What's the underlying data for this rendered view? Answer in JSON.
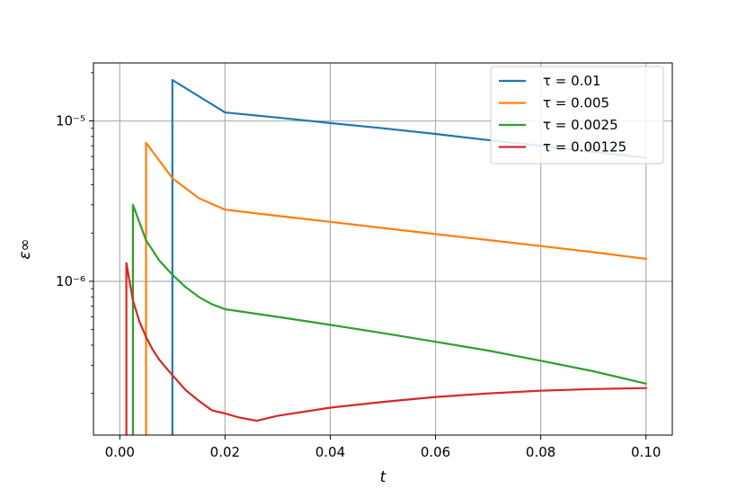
{
  "chart_data": {
    "type": "line",
    "title": "",
    "xlabel": "t",
    "ylabel": "ε∞",
    "xlim": [
      -0.005,
      0.105
    ],
    "ylim": [
      1.1e-07,
      2.3e-05
    ],
    "yscale": "log",
    "grid": true,
    "legend_position": "top-right",
    "xticks": [
      {
        "value": 0.0,
        "label": "0.00"
      },
      {
        "value": 0.02,
        "label": "0.02"
      },
      {
        "value": 0.04,
        "label": "0.04"
      },
      {
        "value": 0.06,
        "label": "0.06"
      },
      {
        "value": 0.08,
        "label": "0.08"
      },
      {
        "value": 0.1,
        "label": "0.10"
      }
    ],
    "yticks": [
      {
        "value": 1e-06,
        "label": "10⁻⁶"
      },
      {
        "value": 1e-05,
        "label": "10⁻⁵"
      }
    ],
    "series": [
      {
        "name": "τ = 0.01",
        "color": "#1f77b4",
        "x": [
          0.01,
          0.01,
          0.02,
          0.03,
          0.04,
          0.05,
          0.06,
          0.07,
          0.08,
          0.09,
          0.1
        ],
        "y": [
          1.1e-07,
          1.8e-05,
          1.13e-05,
          1.05e-05,
          9.7e-06,
          9e-06,
          8.3e-06,
          7.6e-06,
          7e-06,
          6.4e-06,
          5.9e-06
        ]
      },
      {
        "name": "τ = 0.005",
        "color": "#ff7f0e",
        "x": [
          0.005,
          0.005,
          0.01,
          0.015,
          0.02,
          0.03,
          0.04,
          0.05,
          0.06,
          0.07,
          0.08,
          0.09,
          0.1
        ],
        "y": [
          1.1e-07,
          7.3e-06,
          4.4e-06,
          3.3e-06,
          2.8e-06,
          2.56e-06,
          2.35e-06,
          2.15e-06,
          1.97e-06,
          1.81e-06,
          1.66e-06,
          1.52e-06,
          1.38e-06
        ]
      },
      {
        "name": "τ = 0.0025",
        "color": "#2ca02c",
        "x": [
          0.0025,
          0.0025,
          0.005,
          0.0075,
          0.01,
          0.0125,
          0.015,
          0.0175,
          0.02,
          0.03,
          0.04,
          0.05,
          0.06,
          0.07,
          0.08,
          0.09,
          0.1
        ],
        "y": [
          1.1e-07,
          3e-06,
          1.8e-06,
          1.35e-06,
          1.1e-06,
          9.2e-07,
          8e-07,
          7.2e-07,
          6.7e-07,
          6e-07,
          5.35e-07,
          4.75e-07,
          4.2e-07,
          3.7e-07,
          3.2e-07,
          2.75e-07,
          2.3e-07
        ]
      },
      {
        "name": "τ = 0.00125",
        "color": "#d62728",
        "x": [
          0.00125,
          0.00125,
          0.0025,
          0.00375,
          0.005,
          0.00625,
          0.0075,
          0.00875,
          0.01,
          0.0125,
          0.015,
          0.0175,
          0.02,
          0.0225,
          0.026,
          0.03,
          0.04,
          0.05,
          0.06,
          0.07,
          0.08,
          0.09,
          0.1
        ],
        "y": [
          1.1e-07,
          1.3e-06,
          7.6e-07,
          5.6e-07,
          4.5e-07,
          3.75e-07,
          3.25e-07,
          2.9e-07,
          2.6e-07,
          2.1e-07,
          1.8e-07,
          1.57e-07,
          1.5e-07,
          1.42e-07,
          1.35e-07,
          1.45e-07,
          1.63e-07,
          1.77e-07,
          1.9e-07,
          2e-07,
          2.08e-07,
          2.13e-07,
          2.16e-07
        ]
      }
    ]
  }
}
